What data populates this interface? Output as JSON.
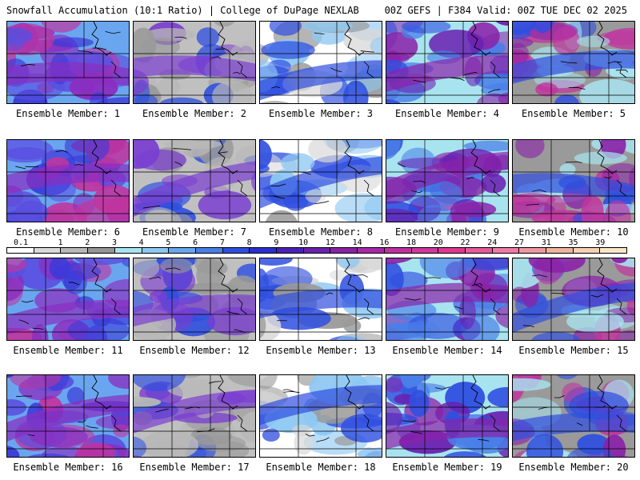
{
  "header": {
    "left_title": "Snowfall Accumulation (10:1 Ratio) | College of DuPage NEXLAB",
    "right_title": "00Z GEFS | F384 Valid: 00Z TUE DEC 02 2025"
  },
  "colorbar": {
    "labels": [
      "0.1",
      "1",
      "2",
      "3",
      "4",
      "5",
      "6",
      "7",
      "8",
      "9",
      "10",
      "12",
      "14",
      "16",
      "18",
      "20",
      "22",
      "24",
      "27",
      "31",
      "35",
      "39"
    ],
    "colors": [
      "#ffffff",
      "#d9d9d9",
      "#b8b8b8",
      "#959595",
      "#a8e4f0",
      "#8ec8f2",
      "#6aa6f0",
      "#4a7fe8",
      "#2f4fe0",
      "#2a2fd0",
      "#4a20b8",
      "#6a20b0",
      "#8a22a8",
      "#a828a8",
      "#c030a0",
      "#d0389c",
      "#e03890",
      "#e85a9a",
      "#f07aa8",
      "#f098a0",
      "#f0b49c",
      "#f5d0b4",
      "#f8e6c8"
    ]
  },
  "members": [
    {
      "label": "Ensemble Member: 1"
    },
    {
      "label": "Ensemble Member: 2"
    },
    {
      "label": "Ensemble Member: 3"
    },
    {
      "label": "Ensemble Member: 4"
    },
    {
      "label": "Ensemble Member: 5"
    },
    {
      "label": "Ensemble Member: 6"
    },
    {
      "label": "Ensemble Member: 7"
    },
    {
      "label": "Ensemble Member: 8"
    },
    {
      "label": "Ensemble Member: 9"
    },
    {
      "label": "Ensemble Member: 10"
    },
    {
      "label": "Ensemble Member: 11"
    },
    {
      "label": "Ensemble Member: 12"
    },
    {
      "label": "Ensemble Member: 13"
    },
    {
      "label": "Ensemble Member: 14"
    },
    {
      "label": "Ensemble Member: 15"
    },
    {
      "label": "Ensemble Member: 16"
    },
    {
      "label": "Ensemble Member: 17"
    },
    {
      "label": "Ensemble Member: 18"
    },
    {
      "label": "Ensemble Member: 19"
    },
    {
      "label": "Ensemble Member: 20"
    }
  ]
}
